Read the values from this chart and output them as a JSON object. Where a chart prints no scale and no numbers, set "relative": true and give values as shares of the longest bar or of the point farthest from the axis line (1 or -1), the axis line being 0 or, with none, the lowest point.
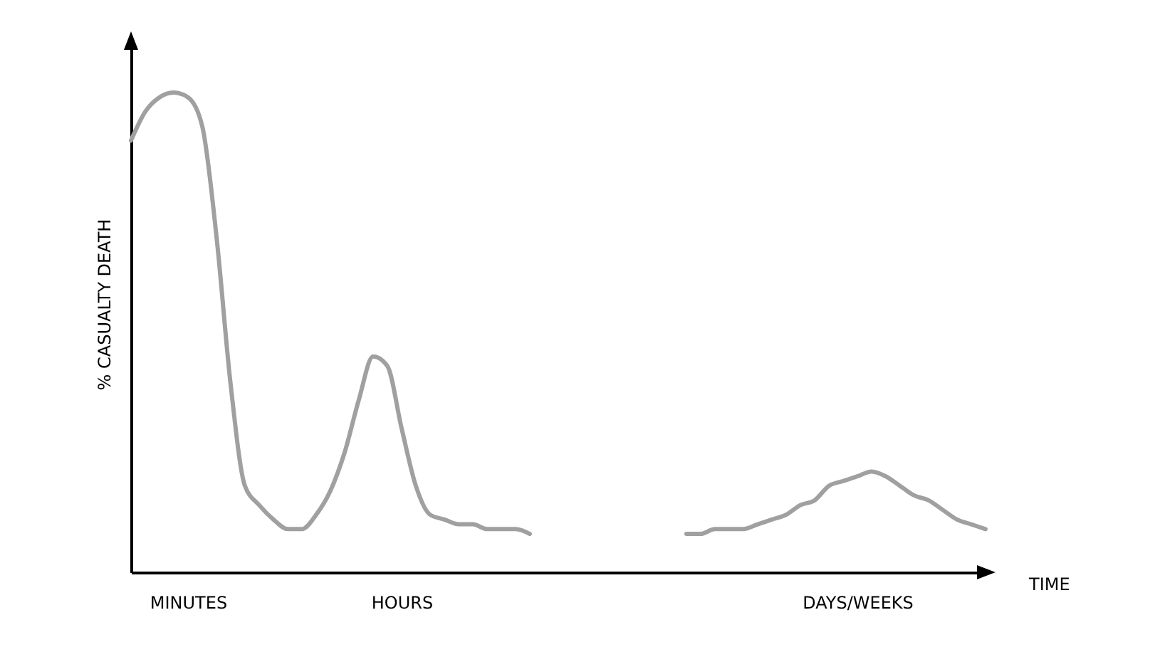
{
  "chart_data": {
    "type": "line",
    "relative": true,
    "xlabel": "TIME",
    "ylabel": "% CASUALTY DEATH",
    "categories": [
      null,
      null,
      null,
      null,
      "MINUTES",
      null,
      null,
      null,
      null,
      null,
      null,
      null,
      null,
      null,
      null,
      null,
      null,
      null,
      null,
      "HOURS",
      null,
      null,
      null,
      null,
      null,
      null,
      null,
      null,
      null,
      null,
      null,
      null,
      null,
      null,
      null,
      null,
      null,
      null,
      null,
      null,
      null,
      null,
      null,
      null,
      null,
      null,
      null,
      null,
      null,
      null,
      null,
      "DAYS/WEEKS",
      null,
      null,
      null,
      null,
      null,
      null,
      null,
      null,
      null
    ],
    "series": [
      {
        "color": "#a0a0a0",
        "values": [
          0.9,
          0.96,
          0.99,
          1,
          0.99,
          0.93,
          0.7,
          0.39,
          0.18,
          0.14,
          0.11,
          0.09,
          0.09,
          0.12,
          0.17,
          0.25,
          0.36,
          0.45,
          0.43,
          0.3,
          0.18,
          0.12,
          0.11,
          0.1,
          0.1,
          0.09,
          0.09,
          0.09,
          0.08,
          null,
          null,
          null,
          null,
          null,
          null,
          null,
          null,
          null,
          null,
          0.08,
          0.08,
          0.09,
          0.09,
          0.09,
          0.1,
          0.11,
          0.12,
          0.14,
          0.15,
          0.18,
          0.19,
          0.2,
          0.21,
          0.2,
          0.18,
          0.16,
          0.15,
          0.13,
          0.11,
          0.1,
          0.09
        ]
      }
    ],
    "grid": false,
    "line_style": "solid",
    "marker": "none"
  }
}
